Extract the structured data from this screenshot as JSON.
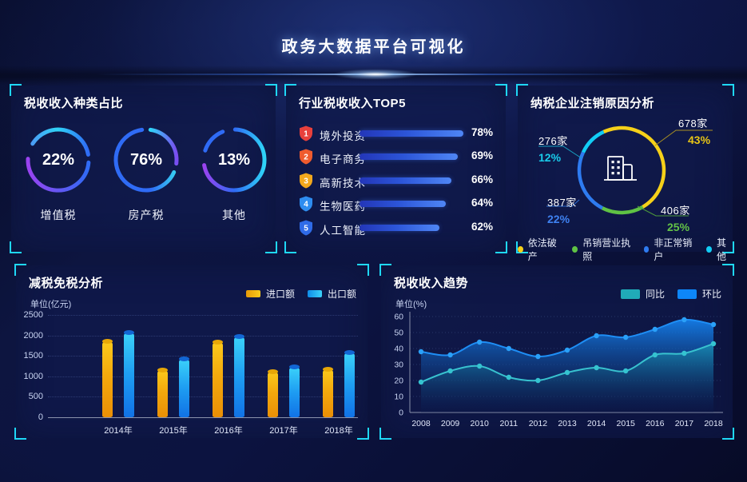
{
  "header": {
    "title": "政务大数据平台可视化"
  },
  "colors": {
    "accent_cyan": "#1fd8f7",
    "page_bg": "#0c1340",
    "panel_bg": "#111a4c",
    "ring_cyan": "#2fd4f7",
    "ring_blue": "#2f6bf5",
    "ring_purple": "#9a43f0",
    "top5_bar": "#4f86f5",
    "pie_yellow": "#f5d019",
    "pie_green": "#5fc244",
    "pie_blue": "#2e7bf0",
    "pie_cyan": "#12cdf5",
    "import_yellow": "#f3a90d",
    "export_blue": "#29c1f8",
    "tongbi_teal": "#20aab8",
    "huanbi_blue": "#0d86f8"
  },
  "chart_data": [
    {
      "id": "tax_type_share",
      "type": "pie",
      "title": "税收收入种类占比",
      "subtype": "donut-gauges",
      "unit": "%",
      "items": [
        {
          "label": "增值税",
          "value": 22
        },
        {
          "label": "房产税",
          "value": 76
        },
        {
          "label": "其他",
          "value": 13
        }
      ]
    },
    {
      "id": "industry_top5",
      "type": "bar",
      "title": "行业税收收入TOP5",
      "orientation": "horizontal",
      "unit": "%",
      "items": [
        {
          "rank": 1,
          "label": "境外投资",
          "value": 78
        },
        {
          "rank": 2,
          "label": "电子商务",
          "value": 69
        },
        {
          "rank": 3,
          "label": "高新技术",
          "value": 66
        },
        {
          "rank": 4,
          "label": "生物医药",
          "value": 64
        },
        {
          "rank": 5,
          "label": "人工智能",
          "value": 62
        }
      ]
    },
    {
      "id": "dereg_reasons",
      "type": "pie",
      "title": "纳税企业注销原因分析",
      "legend_position": "bottom",
      "items": [
        {
          "label": "依法破产",
          "count": "678家",
          "pct": "43%",
          "color": "#f5d019"
        },
        {
          "label": "吊销营业执照",
          "count": "406家",
          "pct": "25%",
          "color": "#5fc244"
        },
        {
          "label": "非正常销户",
          "count": "387家",
          "pct": "22%",
          "color": "#2e7bf0"
        },
        {
          "label": "其他",
          "count": "276家",
          "pct": "12%",
          "color": "#12cdf5"
        }
      ]
    },
    {
      "id": "tax_reduction",
      "type": "bar",
      "title": "减税免税分析",
      "ylabel": "单位(亿元)",
      "ylim": [
        0,
        2500
      ],
      "yticks": [
        0,
        500,
        1000,
        1500,
        2000,
        2500
      ],
      "grid": "dotted",
      "categories": [
        "2014年",
        "2015年",
        "2016年",
        "2017年",
        "2018年"
      ],
      "series": [
        {
          "name": "进口额",
          "values": [
            1850,
            1150,
            1830,
            1110,
            1170
          ]
        },
        {
          "name": "出口额",
          "values": [
            2080,
            1430,
            1980,
            1240,
            1580
          ]
        }
      ]
    },
    {
      "id": "tax_trend",
      "type": "area",
      "title": "税收收入趋势",
      "ylabel": "单位(%)",
      "ylim": [
        0,
        60
      ],
      "yticks": [
        0,
        10,
        20,
        30,
        40,
        50,
        60
      ],
      "grid": "dotted",
      "x": [
        "2008",
        "2009",
        "2010",
        "2011",
        "2012",
        "2013",
        "2014",
        "2015",
        "2016",
        "2017",
        "2018"
      ],
      "series": [
        {
          "name": "同比",
          "values": [
            19,
            26,
            29,
            22,
            20,
            25,
            28,
            26,
            36,
            37,
            43
          ]
        },
        {
          "name": "环比",
          "values": [
            38,
            36,
            44,
            40,
            35,
            39,
            48,
            47,
            52,
            58,
            55
          ]
        }
      ]
    }
  ]
}
